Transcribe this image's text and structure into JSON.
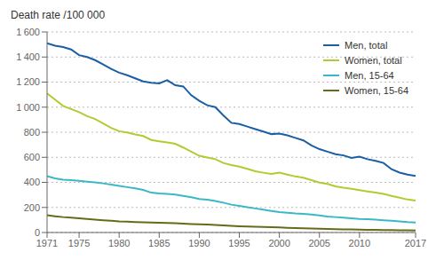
{
  "chart_data": {
    "type": "line",
    "ylabel": "Death rate /100 000",
    "x": [
      1971,
      1972,
      1973,
      1974,
      1975,
      1976,
      1977,
      1978,
      1979,
      1980,
      1981,
      1982,
      1983,
      1984,
      1985,
      1986,
      1987,
      1988,
      1989,
      1990,
      1991,
      1992,
      1993,
      1994,
      1995,
      1996,
      1997,
      1998,
      1999,
      2000,
      2001,
      2002,
      2003,
      2004,
      2005,
      2006,
      2007,
      2008,
      2009,
      2010,
      2011,
      2012,
      2013,
      2014,
      2015,
      2016,
      2017
    ],
    "series": [
      {
        "name": "Men, total",
        "color": "#1a5fa5",
        "values": [
          1510,
          1490,
          1480,
          1460,
          1415,
          1400,
          1375,
          1340,
          1305,
          1275,
          1255,
          1230,
          1205,
          1195,
          1190,
          1215,
          1175,
          1165,
          1095,
          1050,
          1015,
          1000,
          935,
          875,
          865,
          845,
          825,
          805,
          785,
          790,
          775,
          755,
          735,
          695,
          665,
          645,
          625,
          615,
          595,
          605,
          585,
          572,
          555,
          505,
          478,
          462,
          452
        ]
      },
      {
        "name": "Women, total",
        "color": "#b5c933",
        "values": [
          1110,
          1060,
          1010,
          985,
          960,
          928,
          905,
          870,
          835,
          808,
          798,
          782,
          770,
          738,
          728,
          718,
          708,
          678,
          645,
          612,
          598,
          585,
          555,
          538,
          525,
          508,
          488,
          477,
          467,
          477,
          462,
          447,
          437,
          418,
          398,
          387,
          368,
          357,
          348,
          338,
          328,
          318,
          308,
          292,
          278,
          263,
          255
        ]
      },
      {
        "name": "Men, 15-64",
        "color": "#3ab8c8",
        "values": [
          450,
          432,
          422,
          418,
          412,
          406,
          400,
          392,
          382,
          372,
          362,
          352,
          340,
          318,
          312,
          308,
          302,
          292,
          282,
          268,
          262,
          252,
          238,
          222,
          212,
          202,
          192,
          182,
          172,
          163,
          158,
          152,
          148,
          143,
          136,
          128,
          123,
          118,
          113,
          108,
          106,
          103,
          98,
          93,
          88,
          83,
          80
        ]
      },
      {
        "name": "Women, 15-64",
        "color": "#666b18",
        "values": [
          138,
          130,
          123,
          118,
          113,
          108,
          103,
          98,
          93,
          88,
          86,
          84,
          82,
          80,
          78,
          76,
          74,
          71,
          68,
          65,
          63,
          60,
          56,
          53,
          50,
          48,
          46,
          44,
          42,
          40,
          38,
          36,
          34,
          32,
          30,
          28,
          26,
          25,
          24,
          23,
          22,
          21,
          20,
          19,
          18,
          17,
          16
        ]
      }
    ],
    "xlim": [
      1971,
      2017
    ],
    "xticks": [
      1971,
      1975,
      1980,
      1985,
      1990,
      1995,
      2000,
      2005,
      2010,
      2017
    ],
    "ylim": [
      0,
      1600
    ],
    "yticks": [
      0,
      200,
      400,
      600,
      800,
      {
        "value": 1000,
        "label": "1 000"
      },
      {
        "value": 1200,
        "label": "1 200"
      },
      {
        "value": 1400,
        "label": "1 400"
      },
      {
        "value": 1600,
        "label": "1 600"
      }
    ],
    "grid": "y",
    "legend": "upper right"
  }
}
